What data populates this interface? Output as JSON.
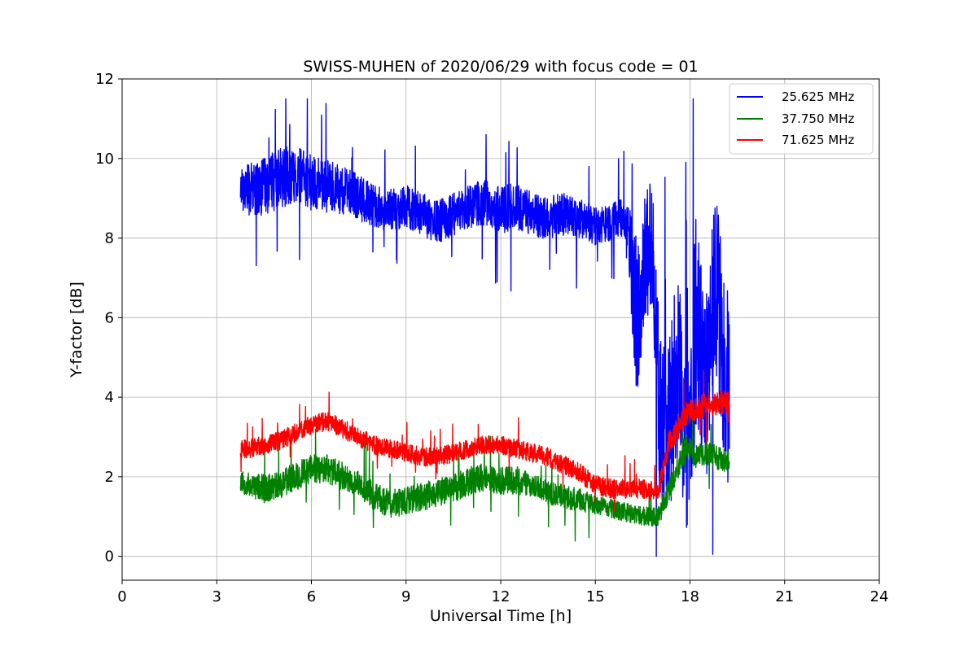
{
  "chart_data": {
    "type": "line",
    "title": "SWISS-MUHEN of 2020/06/29 with focus code = 01",
    "xlabel": "Universal Time [h]",
    "ylabel": "Y-factor [dB]",
    "xlim": [
      0,
      24
    ],
    "ylim": [
      -0.6,
      12
    ],
    "xticks": [
      0,
      3,
      6,
      9,
      12,
      15,
      18,
      21,
      24
    ],
    "yticks": [
      0,
      2,
      4,
      6,
      8,
      10,
      12
    ],
    "grid": true,
    "legend_position": "top-right",
    "series": [
      {
        "name": "25.625 MHz",
        "color": "#0000ff",
        "x": [
          3.75,
          4.0,
          4.5,
          5.0,
          5.5,
          6.0,
          6.5,
          7.0,
          7.5,
          8.0,
          8.5,
          9.0,
          9.5,
          10.0,
          10.5,
          11.0,
          11.5,
          12.0,
          12.5,
          13.0,
          13.5,
          14.0,
          14.5,
          15.0,
          15.5,
          16.0,
          16.3,
          16.5,
          16.8,
          17.0,
          17.3,
          17.6,
          17.9,
          18.2,
          18.5,
          18.8,
          19.1,
          19.25
        ],
        "y": [
          9.3,
          9.2,
          9.3,
          9.5,
          9.6,
          9.4,
          9.3,
          9.2,
          9.0,
          8.8,
          8.7,
          8.8,
          8.6,
          8.4,
          8.6,
          8.8,
          8.9,
          8.7,
          8.8,
          8.6,
          8.5,
          8.6,
          8.5,
          8.3,
          8.4,
          8.5,
          6.0,
          7.0,
          8.0,
          4.0,
          3.0,
          5.0,
          2.5,
          6.0,
          4.0,
          7.0,
          5.0,
          4.0
        ],
        "noise_band": [
          0.9,
          1.1,
          1.2,
          1.3,
          1.2,
          1.2,
          1.1,
          1.0,
          1.0,
          0.9,
          0.9,
          0.9,
          0.9,
          0.9,
          0.9,
          0.9,
          1.0,
          1.0,
          1.0,
          0.9,
          0.9,
          0.9,
          0.9,
          0.8,
          0.8,
          1.0,
          3.5,
          3.0,
          3.0,
          4.0,
          3.5,
          4.5,
          3.5,
          4.5,
          4.0,
          4.0,
          4.5,
          4.0
        ]
      },
      {
        "name": "37.750 MHz",
        "color": "#008000",
        "x": [
          3.75,
          4.0,
          4.5,
          5.0,
          5.5,
          6.0,
          6.5,
          7.0,
          7.5,
          8.0,
          8.5,
          9.0,
          9.5,
          10.0,
          10.5,
          11.0,
          11.5,
          12.0,
          12.5,
          13.0,
          13.5,
          14.0,
          14.5,
          15.0,
          15.5,
          16.0,
          16.5,
          17.0,
          17.3,
          17.6,
          17.9,
          18.2,
          18.5,
          18.8,
          19.1,
          19.25
        ],
        "y": [
          1.9,
          1.8,
          1.7,
          1.8,
          2.0,
          2.2,
          2.2,
          2.0,
          1.8,
          1.5,
          1.3,
          1.4,
          1.5,
          1.6,
          1.7,
          1.9,
          2.0,
          1.9,
          1.9,
          1.8,
          1.6,
          1.5,
          1.4,
          1.3,
          1.2,
          1.1,
          1.0,
          1.0,
          1.6,
          2.2,
          2.8,
          2.5,
          2.6,
          2.5,
          2.4,
          2.4
        ],
        "noise_band": [
          0.5,
          0.5,
          0.6,
          0.6,
          0.6,
          0.6,
          0.6,
          0.6,
          0.6,
          0.6,
          0.6,
          0.6,
          0.6,
          0.6,
          0.6,
          0.6,
          0.6,
          0.6,
          0.6,
          0.5,
          0.5,
          0.5,
          0.5,
          0.4,
          0.4,
          0.4,
          0.4,
          0.4,
          0.5,
          0.5,
          0.5,
          0.5,
          0.5,
          0.5,
          0.5,
          0.5
        ]
      },
      {
        "name": "71.625 MHz",
        "color": "#ff0000",
        "x": [
          3.75,
          4.0,
          4.5,
          5.0,
          5.5,
          6.0,
          6.5,
          7.0,
          7.5,
          8.0,
          8.5,
          9.0,
          9.5,
          10.0,
          10.5,
          11.0,
          11.5,
          12.0,
          12.5,
          13.0,
          13.5,
          14.0,
          14.5,
          15.0,
          15.5,
          16.0,
          16.5,
          17.0,
          17.3,
          17.6,
          17.9,
          18.2,
          18.5,
          18.8,
          19.1,
          19.25
        ],
        "y": [
          2.7,
          2.7,
          2.8,
          2.9,
          3.1,
          3.3,
          3.4,
          3.2,
          3.0,
          2.8,
          2.7,
          2.6,
          2.5,
          2.5,
          2.6,
          2.7,
          2.8,
          2.8,
          2.7,
          2.6,
          2.5,
          2.3,
          2.1,
          1.8,
          1.7,
          1.7,
          1.7,
          1.6,
          2.8,
          3.2,
          3.6,
          3.7,
          3.8,
          3.8,
          3.9,
          3.9
        ],
        "noise_band": [
          0.4,
          0.4,
          0.4,
          0.4,
          0.4,
          0.4,
          0.4,
          0.4,
          0.4,
          0.4,
          0.4,
          0.4,
          0.4,
          0.4,
          0.4,
          0.4,
          0.4,
          0.4,
          0.4,
          0.4,
          0.4,
          0.4,
          0.4,
          0.4,
          0.4,
          0.4,
          0.4,
          0.4,
          0.5,
          0.5,
          0.5,
          0.5,
          0.5,
          0.5,
          0.5,
          0.5
        ]
      }
    ]
  }
}
